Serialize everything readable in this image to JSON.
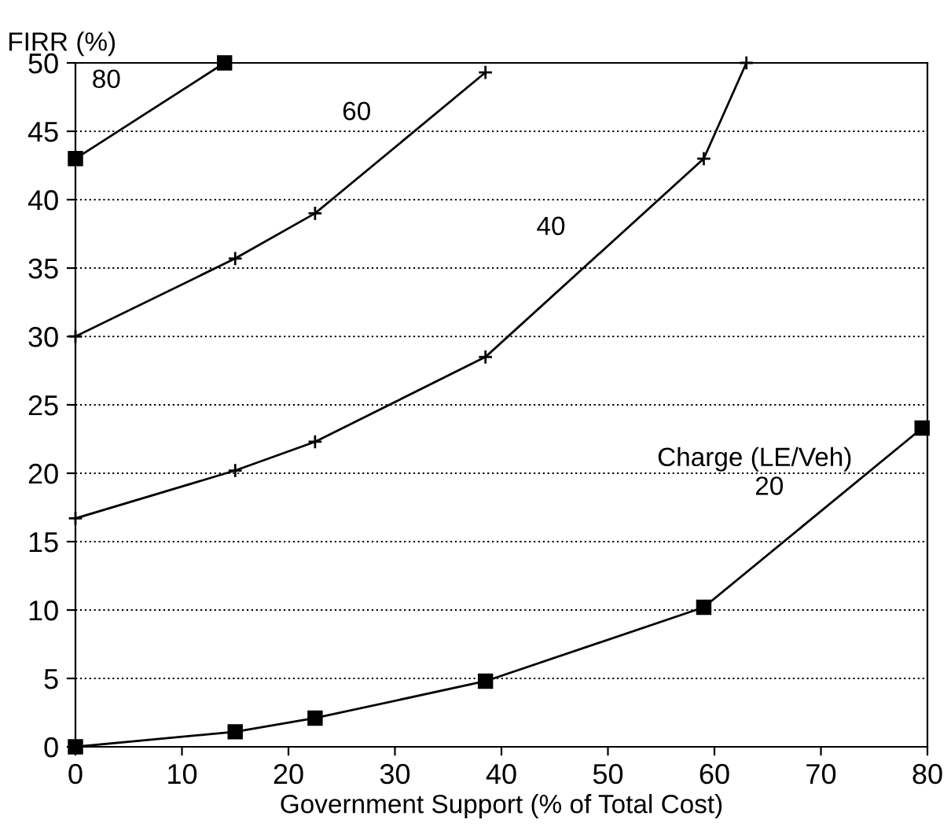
{
  "chart_data": {
    "type": "line",
    "xlabel": "Government Support (% of Total Cost)",
    "ylabel": "FIRR (%)",
    "legend_title": "Charge (LE/Veh)",
    "xlim": [
      0,
      80
    ],
    "xticks": [
      0,
      10,
      20,
      30,
      40,
      50,
      60,
      70,
      80
    ],
    "ylim": [
      0,
      50
    ],
    "yticks": [
      0,
      5,
      10,
      15,
      20,
      25,
      30,
      35,
      40,
      45,
      50
    ],
    "grid": "y",
    "line_style": "solid",
    "color": "#000000",
    "series": [
      {
        "name": "20",
        "marker": "square",
        "x": [
          0,
          15,
          22.5,
          38.5,
          59,
          79.5
        ],
        "values": [
          0,
          1.1,
          2.1,
          4.8,
          10.2,
          23.3
        ]
      },
      {
        "name": "40",
        "marker": "cross",
        "x": [
          0,
          15,
          22.5,
          38.5,
          59,
          63
        ],
        "values": [
          16.7,
          20.2,
          22.3,
          28.5,
          43,
          50
        ]
      },
      {
        "name": "60",
        "marker": "cross",
        "x": [
          0,
          15,
          22.5,
          38.5
        ],
        "values": [
          30,
          35.7,
          39,
          49.3
        ]
      },
      {
        "name": "80",
        "marker": "square",
        "x": [
          0,
          14
        ],
        "values": [
          43,
          50
        ]
      }
    ]
  }
}
